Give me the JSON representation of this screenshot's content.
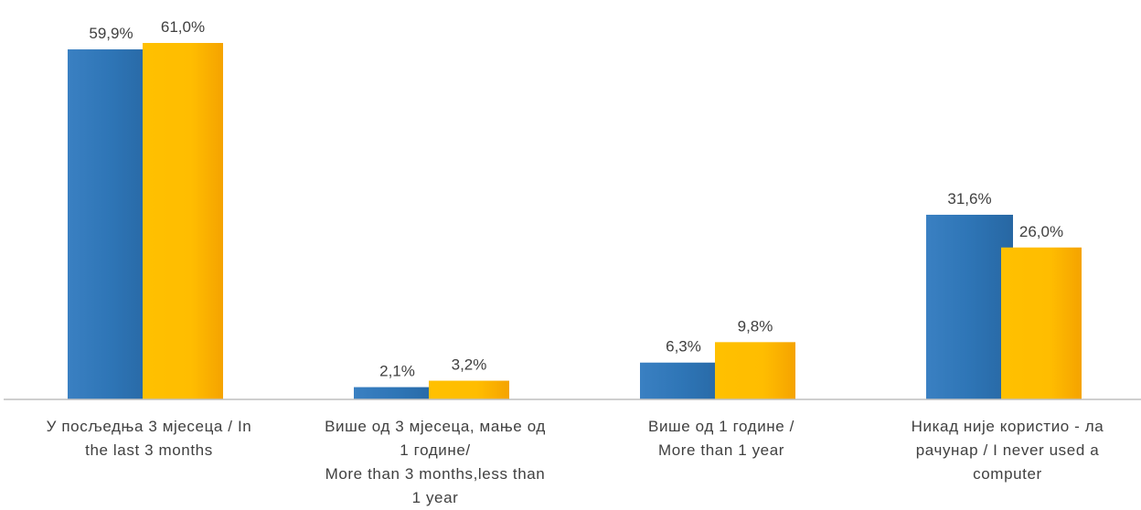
{
  "chart_data": {
    "type": "bar",
    "categories": [
      [
        "У посљедња 3 мјесеца / In",
        "the last 3 months"
      ],
      [
        "Више од 3 мјесеца, мање од",
        "1 године/",
        "More than 3 months,less than",
        "1 year"
      ],
      [
        "Више од 1 године /",
        "More than 1 year"
      ],
      [
        "Никад није користио - ла",
        "рачунар / I never used a",
        "computer"
      ]
    ],
    "series": [
      {
        "values": [
          59.9,
          2.1,
          6.3,
          31.6
        ],
        "labels": [
          "59,9%",
          "2,1%",
          "6,3%",
          "31,6%"
        ],
        "color": "#2e75b6"
      },
      {
        "values": [
          61.0,
          3.2,
          9.8,
          26.0
        ],
        "labels": [
          "61,0%",
          "3,2%",
          "9,8%",
          "26,0%"
        ],
        "color": "#ffc000"
      }
    ],
    "ylim": [
      0,
      61.0
    ],
    "grid": false,
    "legend": "none",
    "axis_color": "#bfbfbf"
  }
}
